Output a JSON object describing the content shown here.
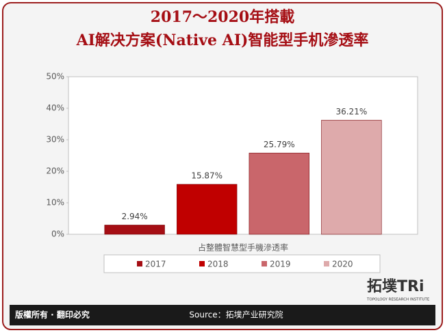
{
  "chart_data": {
    "type": "bar",
    "title": [
      "2017～2020年搭載",
      "AI解决方案(Native AI)智能型手机滲透率"
    ],
    "categories": [
      "占整體智慧型手機滲透率"
    ],
    "series": [
      {
        "name": "2017",
        "color": "#a50e14",
        "values": [
          2.94
        ],
        "value_labels": [
          "2.94%"
        ]
      },
      {
        "name": "2018",
        "color": "#c00000",
        "values": [
          15.87
        ],
        "value_labels": [
          "15.87%"
        ]
      },
      {
        "name": "2019",
        "color": "#c9666b",
        "values": [
          25.79
        ],
        "value_labels": [
          "25.79%"
        ]
      },
      {
        "name": "2020",
        "color": "#deaaab",
        "values": [
          36.21
        ],
        "value_labels": [
          "36.21%"
        ]
      }
    ],
    "ylim": [
      0,
      50
    ],
    "yticks": [
      {
        "value": 0,
        "label": "0%"
      },
      {
        "value": 10,
        "label": "10%"
      },
      {
        "value": 20,
        "label": "20%"
      },
      {
        "value": 30,
        "label": "30%"
      },
      {
        "value": 40,
        "label": "40%"
      },
      {
        "value": 50,
        "label": "50%"
      }
    ],
    "legend": "bottom"
  },
  "footer": {
    "copyright": "版權所有 · 翻印必究",
    "source": "Source：拓墣产业研究院",
    "logo": "拓墣TRi",
    "logo_sub": "TOPOLOGY RESEARCH INSTITUTE"
  }
}
